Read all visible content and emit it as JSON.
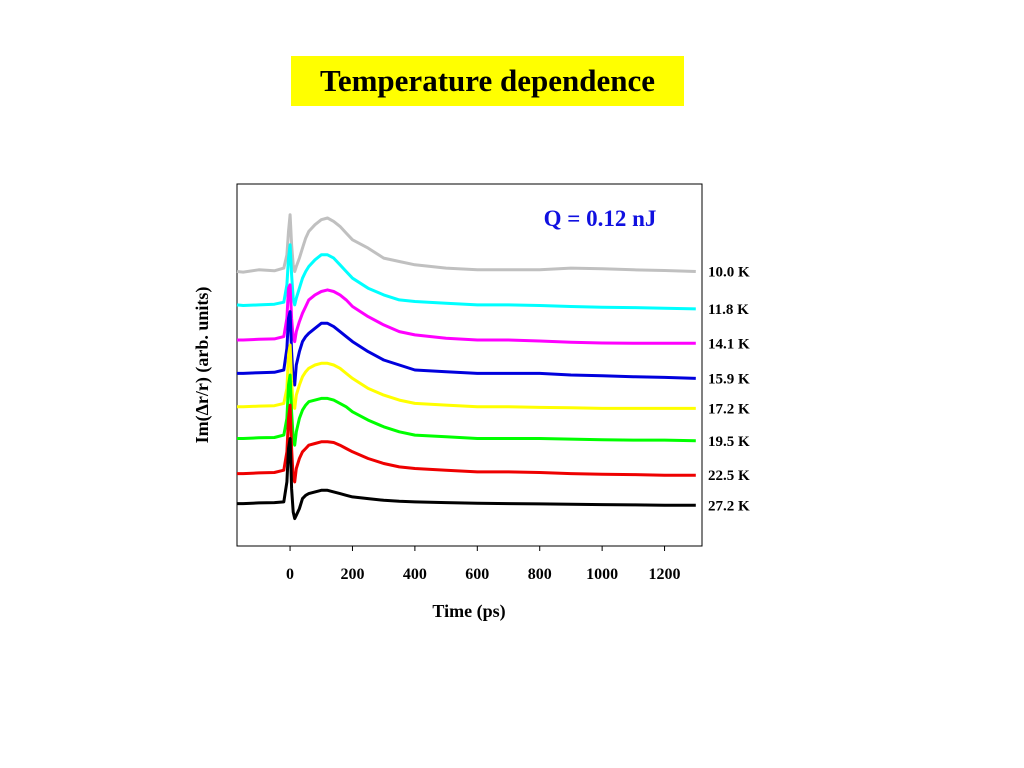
{
  "slide_title": "Temperature dependence",
  "chart_data": {
    "type": "line",
    "title": "",
    "annotation": "Q = 0.12 nJ",
    "annotation_color": "#1010e0",
    "xlabel": "Time (ps)",
    "ylabel": "Im(Δr/r) (arb. units)",
    "xlim": [
      -170,
      1320
    ],
    "xticks": [
      "0",
      "200",
      "400",
      "600",
      "800",
      "1000",
      "1200"
    ],
    "xtick_values": [
      0,
      200,
      400,
      600,
      800,
      1000,
      1200
    ],
    "ylim": [
      0,
      1
    ],
    "y_ticks_shown": false,
    "grid": false,
    "legend": "series labels at right end of each trace",
    "x": [
      -170,
      -150,
      -100,
      -50,
      -20,
      -10,
      -5,
      0,
      5,
      10,
      15,
      20,
      30,
      40,
      50,
      60,
      80,
      100,
      120,
      140,
      160,
      180,
      200,
      250,
      300,
      350,
      400,
      500,
      600,
      700,
      800,
      900,
      1000,
      1100,
      1200,
      1300
    ],
    "series": [
      {
        "name": "10.0 K",
        "label": "10.0 K",
        "color": "#c0c0c0",
        "values": [
          0.78,
          0.778,
          0.785,
          0.782,
          0.79,
          0.83,
          0.9,
          0.95,
          0.86,
          0.8,
          0.78,
          0.795,
          0.82,
          0.85,
          0.88,
          0.9,
          0.92,
          0.935,
          0.94,
          0.93,
          0.915,
          0.895,
          0.875,
          0.85,
          0.82,
          0.81,
          0.8,
          0.79,
          0.785,
          0.785,
          0.785,
          0.79,
          0.788,
          0.785,
          0.783,
          0.78
        ]
      },
      {
        "name": "11.8 K",
        "label": "11.8 K",
        "color": "#00ffff",
        "values": [
          0.68,
          0.678,
          0.68,
          0.682,
          0.688,
          0.74,
          0.82,
          0.86,
          0.77,
          0.7,
          0.68,
          0.7,
          0.73,
          0.76,
          0.78,
          0.795,
          0.815,
          0.83,
          0.83,
          0.82,
          0.8,
          0.78,
          0.76,
          0.73,
          0.71,
          0.695,
          0.69,
          0.685,
          0.68,
          0.68,
          0.678,
          0.675,
          0.673,
          0.672,
          0.67,
          0.668
        ]
      },
      {
        "name": "14.1 K",
        "label": "14.1 K",
        "color": "#ff00ff",
        "values": [
          0.575,
          0.575,
          0.577,
          0.578,
          0.585,
          0.64,
          0.73,
          0.74,
          0.64,
          0.58,
          0.57,
          0.6,
          0.63,
          0.655,
          0.675,
          0.695,
          0.71,
          0.72,
          0.725,
          0.72,
          0.71,
          0.695,
          0.675,
          0.645,
          0.62,
          0.6,
          0.59,
          0.58,
          0.575,
          0.575,
          0.572,
          0.568,
          0.566,
          0.565,
          0.565,
          0.565
        ]
      },
      {
        "name": "15.9 K",
        "label": "15.9 K",
        "color": "#0000dd",
        "values": [
          0.475,
          0.475,
          0.477,
          0.478,
          0.485,
          0.55,
          0.64,
          0.66,
          0.54,
          0.45,
          0.44,
          0.5,
          0.54,
          0.57,
          0.585,
          0.595,
          0.61,
          0.625,
          0.625,
          0.615,
          0.6,
          0.585,
          0.57,
          0.54,
          0.515,
          0.5,
          0.485,
          0.48,
          0.475,
          0.475,
          0.475,
          0.47,
          0.468,
          0.465,
          0.463,
          0.46
        ]
      },
      {
        "name": "17.2 K",
        "label": "17.2 K",
        "color": "#ffff00",
        "values": [
          0.375,
          0.375,
          0.377,
          0.378,
          0.385,
          0.43,
          0.53,
          0.56,
          0.45,
          0.38,
          0.37,
          0.41,
          0.44,
          0.465,
          0.48,
          0.49,
          0.5,
          0.505,
          0.505,
          0.5,
          0.49,
          0.475,
          0.46,
          0.43,
          0.41,
          0.395,
          0.385,
          0.38,
          0.375,
          0.375,
          0.373,
          0.372,
          0.37,
          0.37,
          0.37,
          0.37
        ]
      },
      {
        "name": "19.5 K",
        "label": "19.5 K",
        "color": "#00ff00",
        "values": [
          0.28,
          0.28,
          0.282,
          0.283,
          0.29,
          0.34,
          0.44,
          0.47,
          0.36,
          0.28,
          0.26,
          0.3,
          0.34,
          0.365,
          0.38,
          0.39,
          0.395,
          0.4,
          0.4,
          0.395,
          0.385,
          0.375,
          0.36,
          0.335,
          0.315,
          0.3,
          0.29,
          0.285,
          0.28,
          0.28,
          0.28,
          0.278,
          0.276,
          0.275,
          0.275,
          0.273
        ]
      },
      {
        "name": "22.5 K",
        "label": "22.5 K",
        "color": "#ee0000",
        "values": [
          0.175,
          0.175,
          0.177,
          0.178,
          0.185,
          0.24,
          0.34,
          0.38,
          0.25,
          0.16,
          0.15,
          0.19,
          0.22,
          0.24,
          0.25,
          0.26,
          0.265,
          0.27,
          0.27,
          0.268,
          0.26,
          0.25,
          0.24,
          0.22,
          0.205,
          0.195,
          0.19,
          0.185,
          0.18,
          0.18,
          0.178,
          0.175,
          0.173,
          0.172,
          0.17,
          0.17
        ]
      },
      {
        "name": "27.2 K",
        "label": "27.2 K",
        "color": "#000000",
        "values": [
          0.085,
          0.085,
          0.087,
          0.088,
          0.09,
          0.15,
          0.25,
          0.28,
          0.13,
          0.06,
          0.04,
          0.05,
          0.07,
          0.1,
          0.11,
          0.115,
          0.12,
          0.125,
          0.125,
          0.12,
          0.115,
          0.11,
          0.105,
          0.1,
          0.095,
          0.092,
          0.09,
          0.088,
          0.086,
          0.085,
          0.084,
          0.083,
          0.082,
          0.081,
          0.08,
          0.08
        ]
      }
    ]
  }
}
